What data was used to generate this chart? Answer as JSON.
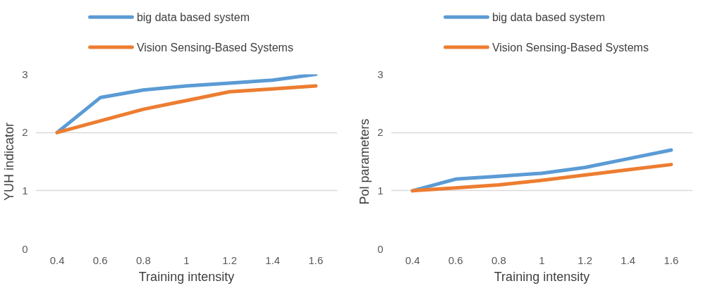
{
  "chart_data": [
    {
      "type": "line",
      "xlabel": "Training intensity",
      "ylabel": "YUH indicator",
      "categories": [
        "0.4",
        "0.6",
        "0.8",
        "1",
        "1.2",
        "1.4",
        "1.6"
      ],
      "ylim": [
        0,
        3
      ],
      "yticks": [
        0,
        1,
        2,
        3
      ],
      "grid": "y",
      "legend": "top",
      "series": [
        {
          "name": "big data based system",
          "color": "#5b9bd5",
          "values": [
            2,
            2.6,
            2.73,
            2.8,
            2.85,
            2.9,
            3.0
          ]
        },
        {
          "name": "Vision Sensing-Based Systems",
          "color": "#ed7d31",
          "values": [
            2,
            2.2,
            2.4,
            2.55,
            2.7,
            2.75,
            2.8
          ]
        }
      ]
    },
    {
      "type": "line",
      "xlabel": "Training intensity",
      "ylabel": "Pol parameters",
      "categories": [
        "0.4",
        "0.6",
        "0.8",
        "1",
        "1.2",
        "1.4",
        "1.6"
      ],
      "ylim": [
        0,
        3
      ],
      "yticks": [
        0,
        1,
        2,
        3
      ],
      "grid": "y",
      "legend": "top",
      "series": [
        {
          "name": "big data based system",
          "color": "#5b9bd5",
          "values": [
            1,
            1.2,
            1.25,
            1.3,
            1.4,
            1.55,
            1.7
          ]
        },
        {
          "name": "Vision Sensing-Based Systems",
          "color": "#ed7d31",
          "values": [
            1,
            1.05,
            1.1,
            1.18,
            1.27,
            1.36,
            1.45
          ]
        }
      ]
    }
  ]
}
